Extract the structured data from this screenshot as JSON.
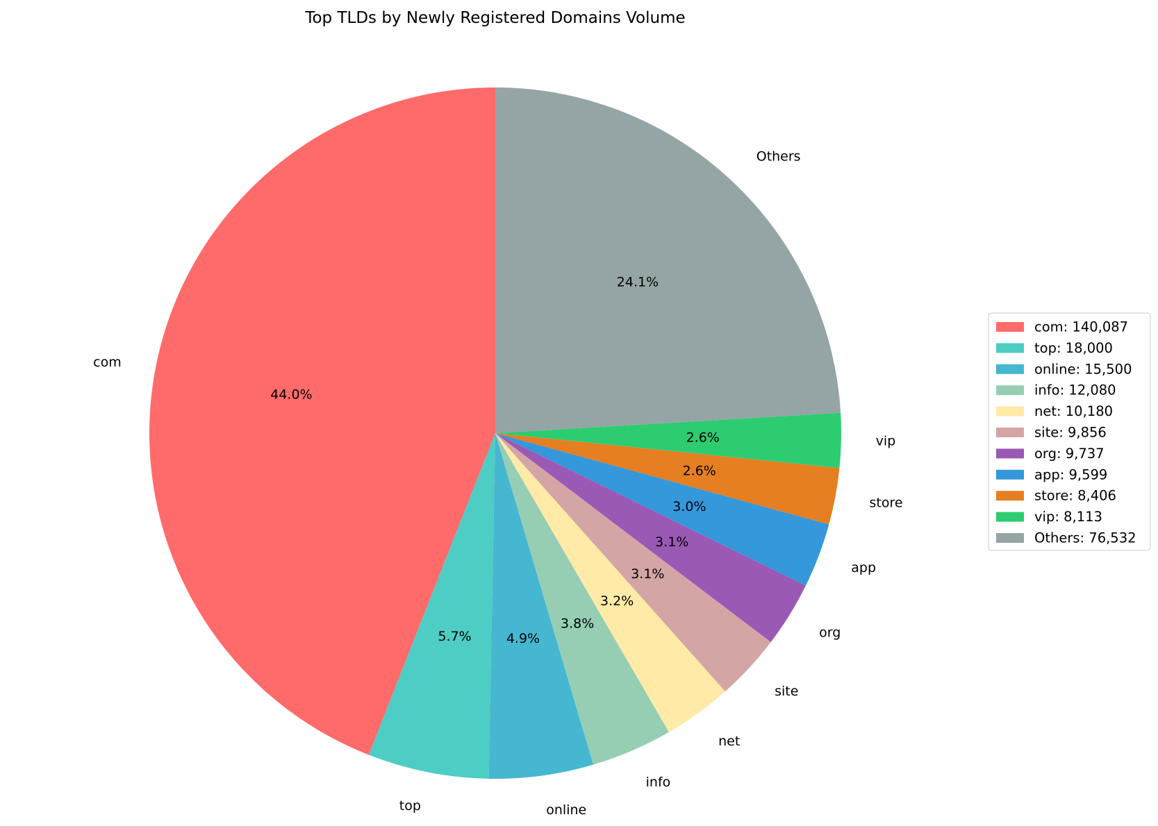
{
  "chart_data": {
    "type": "pie",
    "title": "Top TLDs by Newly Registered Domains Volume",
    "start_angle_deg": 90,
    "direction": "counterclockwise",
    "legend_position": "right",
    "slices": [
      {
        "label": "com",
        "value": 140087,
        "pct_label": "44.0%",
        "legend": "com: 140,087",
        "color": "#ff6b6b"
      },
      {
        "label": "top",
        "value": 18000,
        "pct_label": "5.7%",
        "legend": "top: 18,000",
        "color": "#4ecdc4"
      },
      {
        "label": "online",
        "value": 15500,
        "pct_label": "4.9%",
        "legend": "online: 15,500",
        "color": "#45b7d1"
      },
      {
        "label": "info",
        "value": 12080,
        "pct_label": "3.8%",
        "legend": "info: 12,080",
        "color": "#96ceb4"
      },
      {
        "label": "net",
        "value": 10180,
        "pct_label": "3.2%",
        "legend": "net: 10,180",
        "color": "#ffeaa7"
      },
      {
        "label": "site",
        "value": 9856,
        "pct_label": "3.1%",
        "legend": "site: 9,856",
        "color": "#d4a5a5"
      },
      {
        "label": "org",
        "value": 9737,
        "pct_label": "3.1%",
        "legend": "org: 9,737",
        "color": "#9b59b6"
      },
      {
        "label": "app",
        "value": 9599,
        "pct_label": "3.0%",
        "legend": "app: 9,599",
        "color": "#3498db"
      },
      {
        "label": "store",
        "value": 8406,
        "pct_label": "2.6%",
        "legend": "store: 8,406",
        "color": "#e67e22"
      },
      {
        "label": "vip",
        "value": 8113,
        "pct_label": "2.6%",
        "legend": "vip: 8,113",
        "color": "#2ecc71"
      },
      {
        "label": "Others",
        "value": 76532,
        "pct_label": "24.1%",
        "legend": "Others: 76,532",
        "color": "#95a5a6"
      }
    ]
  }
}
